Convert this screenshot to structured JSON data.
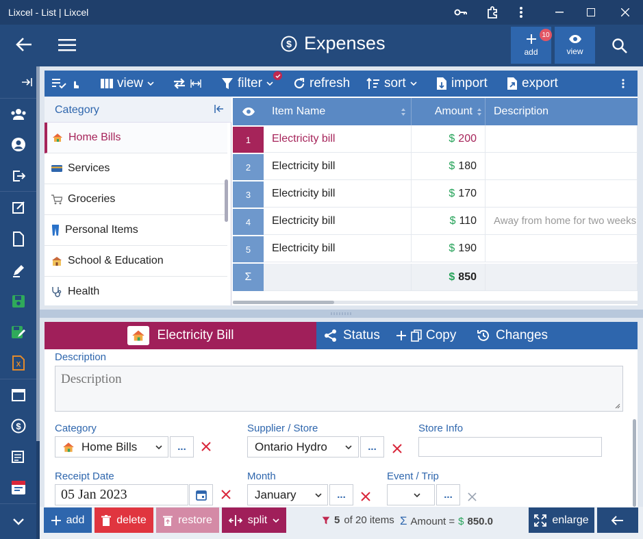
{
  "window": {
    "title": "Lixcel - List | Lixcel"
  },
  "header": {
    "title": "Expenses",
    "add_label": "add",
    "add_badge": "10",
    "view_label": "view"
  },
  "toolbar": {
    "view_label": "view",
    "filter_label": "filter",
    "refresh_label": "refresh",
    "sort_label": "sort",
    "import_label": "import",
    "export_label": "export"
  },
  "category_panel": {
    "header": "Category",
    "items": [
      {
        "label": "Home Bills",
        "icon": "house-icon",
        "selected": true
      },
      {
        "label": "Services",
        "icon": "card-icon"
      },
      {
        "label": "Groceries",
        "icon": "cart-icon"
      },
      {
        "label": "Personal Items",
        "icon": "jeans-icon"
      },
      {
        "label": "School & Education",
        "icon": "school-icon"
      },
      {
        "label": "Health",
        "icon": "stethoscope-icon"
      }
    ]
  },
  "grid": {
    "columns": {
      "item_name": "Item Name",
      "amount": "Amount",
      "description": "Description"
    },
    "currency": "$",
    "rows": [
      {
        "num": "1",
        "item": "Electricity bill",
        "amount": "200",
        "description": ""
      },
      {
        "num": "2",
        "item": "Electricity bill",
        "amount": "180",
        "description": ""
      },
      {
        "num": "3",
        "item": "Electricity bill",
        "amount": "170",
        "description": ""
      },
      {
        "num": "4",
        "item": "Electricity bill",
        "amount": "110",
        "description": "Away from home for two weeks"
      },
      {
        "num": "5",
        "item": "Electricity bill",
        "amount": "190",
        "description": ""
      }
    ],
    "total_symbol": "Σ",
    "total": "850"
  },
  "detail": {
    "title": "Electricity Bill",
    "tabs": {
      "status": "Status",
      "copy": "Copy",
      "changes": "Changes"
    },
    "description_label": "Description",
    "description_placeholder": "Description",
    "category_label": "Category",
    "category_value": "Home Bills",
    "supplier_label": "Supplier / Store",
    "supplier_value": "Ontario Hydro",
    "storeinfo_label": "Store Info",
    "receipt_label": "Receipt Date",
    "receipt_value": "05 Jan 2023",
    "month_label": "Month",
    "month_value": "January",
    "event_label": "Event / Trip",
    "dots": "..."
  },
  "bottom": {
    "add": "add",
    "delete": "delete",
    "restore": "restore",
    "split": "split",
    "count_num": "5",
    "count_text": "of 20 items",
    "sum_symbol": "Σ",
    "amount_label": "Amount =",
    "currency": "$",
    "amount_value": "850.0",
    "enlarge": "enlarge"
  },
  "colors": {
    "accent": "#2e66ad",
    "selected": "#a6245a",
    "money": "#27a35a",
    "danger": "#e0353f"
  }
}
